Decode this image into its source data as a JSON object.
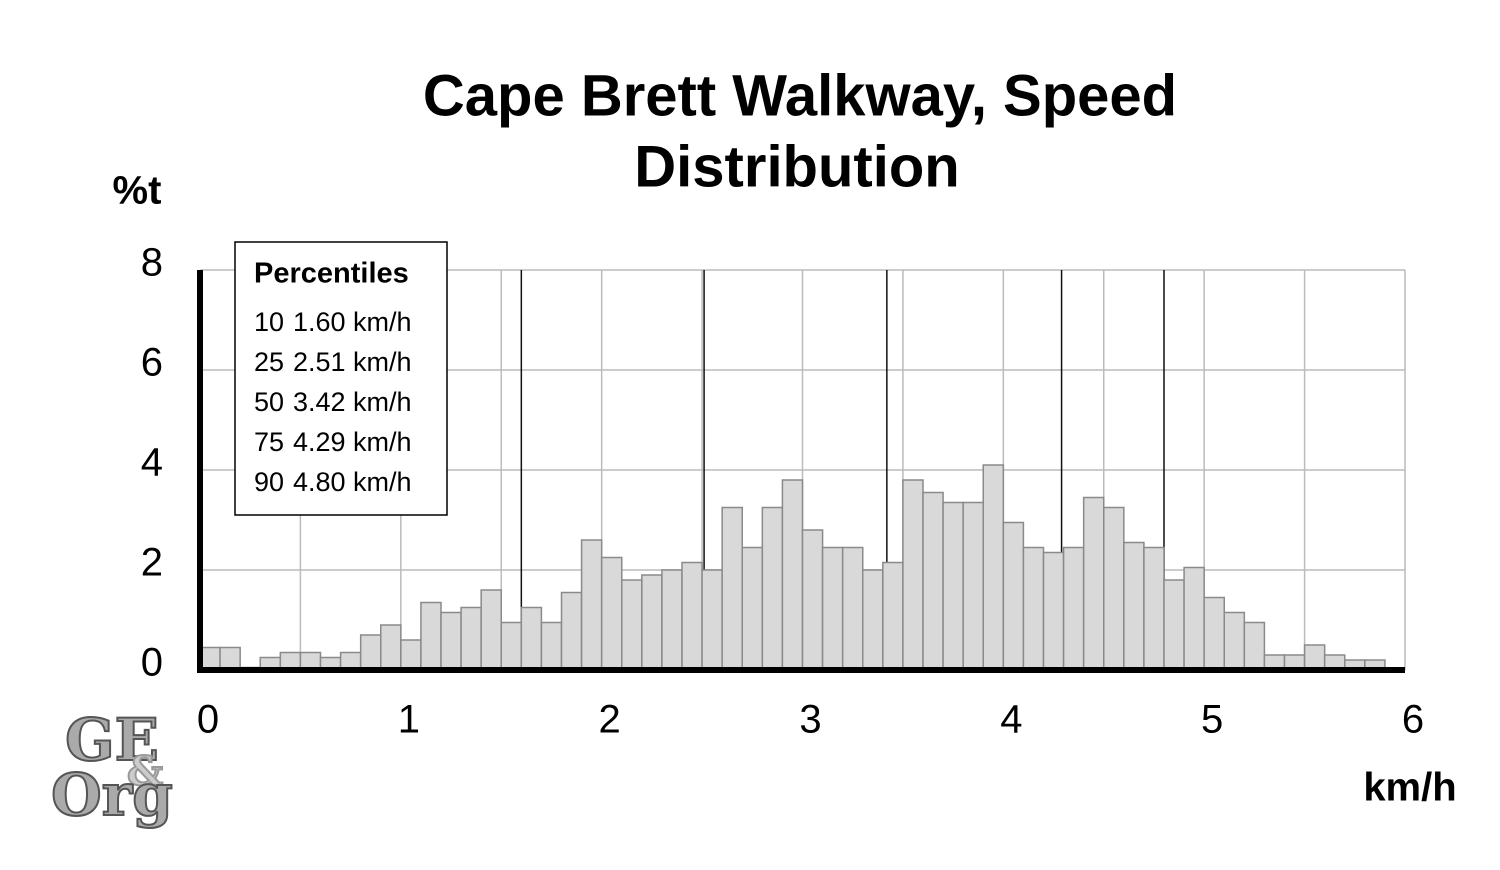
{
  "chart_data": {
    "type": "histogram",
    "title": [
      "Cape Brett Walkway, Speed",
      "Distribution"
    ],
    "y_label": "%t",
    "x_label": "km/h",
    "bins": [
      0,
      0.1,
      0.2,
      0.3,
      0.4,
      0.5,
      0.6,
      0.7,
      0.8,
      0.9,
      1.0,
      1.1,
      1.2,
      1.3,
      1.4,
      1.5,
      1.6,
      1.7,
      1.8,
      1.9,
      2.0,
      2.1,
      2.2,
      2.3,
      2.4,
      2.5,
      2.6,
      2.7,
      2.8,
      2.9,
      3.0,
      3.1,
      3.2,
      3.3,
      3.4,
      3.5,
      3.6,
      3.7,
      3.8,
      3.9,
      4.0,
      4.1,
      4.2,
      4.3,
      4.4,
      4.5,
      4.6,
      4.7,
      4.8,
      4.9,
      5.0,
      5.1,
      5.2,
      5.3,
      5.4,
      5.5,
      5.6,
      5.7,
      5.8,
      5.9
    ],
    "values": [
      0.45,
      0.45,
      0.05,
      0.25,
      0.35,
      0.35,
      0.25,
      0.35,
      0.7,
      0.9,
      0.6,
      1.35,
      1.15,
      1.25,
      1.6,
      0.95,
      1.25,
      0.95,
      1.55,
      2.6,
      2.25,
      1.8,
      1.9,
      2.0,
      2.15,
      2.0,
      3.25,
      2.45,
      3.25,
      3.8,
      2.8,
      2.45,
      2.45,
      2.0,
      2.15,
      3.8,
      3.55,
      3.35,
      3.35,
      4.1,
      2.95,
      2.45,
      2.35,
      2.45,
      3.45,
      3.25,
      2.55,
      2.45,
      1.8,
      2.05,
      1.45,
      1.15,
      0.95,
      0.3,
      0.3,
      0.5,
      0.3,
      0.2,
      0.2
    ],
    "color": "#d9d9d9",
    "xlim": [
      0,
      6
    ],
    "ylim": [
      0,
      8
    ],
    "xticks": [
      0,
      1,
      2,
      3,
      4,
      5,
      6
    ],
    "yticks": [
      0,
      2,
      4,
      6,
      8
    ],
    "x_minor_grid": [
      0.5,
      1.5,
      2.5,
      3.5,
      4.5,
      5.5
    ],
    "grid": true,
    "legend_title": "Percentiles",
    "percentiles": [
      {
        "percentile": 10,
        "value": 1.6,
        "label": "1.60 km/h"
      },
      {
        "percentile": 25,
        "value": 2.51,
        "label": "2.51 km/h"
      },
      {
        "percentile": 50,
        "value": 3.42,
        "label": "3.42 km/h"
      },
      {
        "percentile": 75,
        "value": 4.29,
        "label": "4.29 km/h"
      },
      {
        "percentile": 90,
        "value": 4.8,
        "label": "4.80 km/h"
      }
    ]
  },
  "logo": {
    "lines": [
      "GE",
      "&",
      "Org"
    ]
  }
}
